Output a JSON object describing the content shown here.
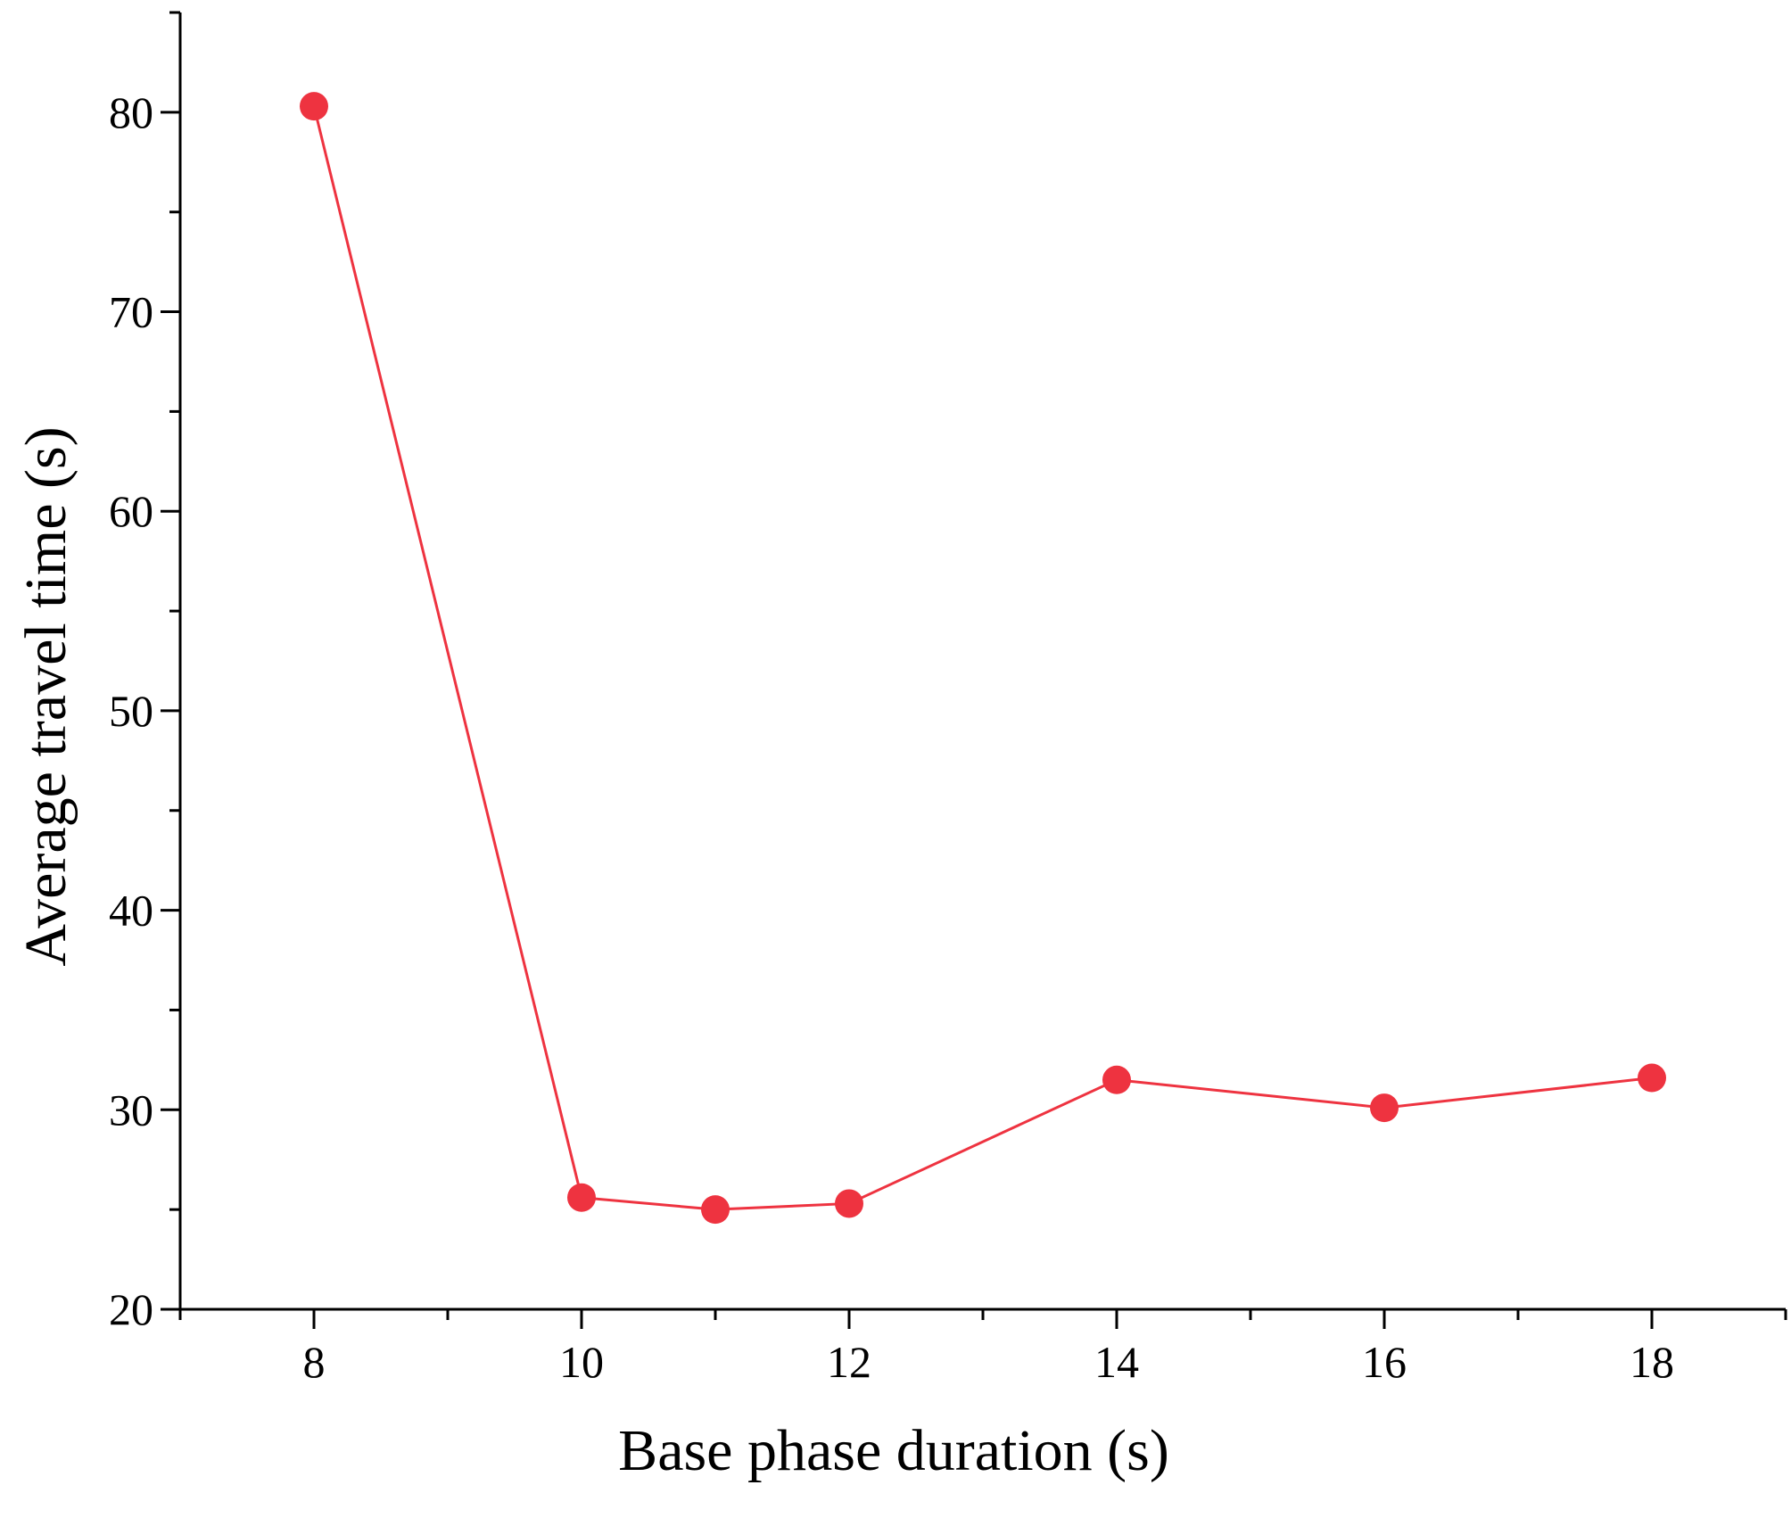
{
  "chart_data": {
    "type": "line",
    "title": "",
    "xlabel": "Base phase duration (s)",
    "ylabel": "Average travel time (s)",
    "xlim": [
      7,
      19
    ],
    "ylim": [
      20,
      85
    ],
    "x_major_ticks": [
      8,
      10,
      12,
      14,
      16,
      18
    ],
    "x_minor_ticks": [
      7,
      9,
      11,
      13,
      15,
      17,
      19
    ],
    "y_major_ticks": [
      20,
      30,
      40,
      50,
      60,
      70,
      80
    ],
    "y_minor_ticks": [
      25,
      35,
      45,
      55,
      65,
      75,
      85
    ],
    "grid": false,
    "legend": "none",
    "series_color": "#ee3340",
    "series": [
      {
        "x": [
          8,
          10,
          11,
          12,
          14,
          16,
          18
        ],
        "values": [
          80.3,
          25.6,
          25.0,
          25.3,
          31.5,
          30.1,
          31.6
        ]
      }
    ]
  }
}
